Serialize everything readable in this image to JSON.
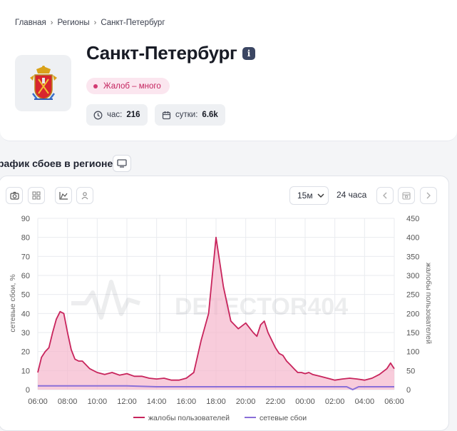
{
  "breadcrumb": {
    "home": "Главная",
    "regions": "Регионы",
    "current": "Санкт-Петербург"
  },
  "page": {
    "title": "Санкт-Петербург",
    "badge": "Жалоб – много"
  },
  "stats": {
    "hour_label": "час:",
    "hour_value": "216",
    "day_label": "сутки:",
    "day_value": "6.6k"
  },
  "section": {
    "title": "рафик сбоев в регионе"
  },
  "toolbar": {
    "interval": "15м",
    "period": "24 часа"
  },
  "watermark": "DETECTOR404",
  "colors": {
    "complaints": "#c8245c",
    "complaints_fill": "#f5b6cc",
    "outages": "#8a6fd8",
    "badge": "#c4245f"
  },
  "chart_data": {
    "type": "area",
    "xlabel": "",
    "ylabel_left": "сетевые сбои, %",
    "ylabel_right": "жалобы пользователей",
    "y_left_range": [
      0,
      90
    ],
    "y_right_range": [
      0,
      450
    ],
    "y_left_ticks": [
      "0",
      "10",
      "20",
      "30",
      "40",
      "50",
      "60",
      "70",
      "80",
      "90"
    ],
    "y_right_ticks": [
      "0",
      "50",
      "100",
      "150",
      "200",
      "250",
      "300",
      "350",
      "400",
      "450"
    ],
    "x_ticks": [
      "06:00",
      "08:00",
      "10:00",
      "12:00",
      "14:00",
      "16:00",
      "18:00",
      "20:00",
      "22:00",
      "00:00",
      "02:00",
      "04:00",
      "06:00"
    ],
    "grid": true,
    "legend_position": "bottom",
    "series": [
      {
        "name": "жалобы пользователей",
        "axis": "right",
        "x_hours": [
          0,
          0.25,
          0.5,
          0.75,
          1,
          1.25,
          1.5,
          1.75,
          2,
          2.25,
          2.5,
          2.75,
          3,
          3.5,
          4,
          4.5,
          5,
          5.5,
          6,
          6.5,
          7,
          7.5,
          8,
          8.5,
          9,
          9.5,
          10,
          10.5,
          11,
          11.5,
          12,
          12.5,
          13,
          13.5,
          14,
          14.5,
          14.75,
          15,
          15.25,
          15.5,
          15.75,
          16,
          16.25,
          16.5,
          16.75,
          17,
          17.25,
          17.5,
          17.75,
          18,
          18.25,
          18.5,
          19,
          19.5,
          20,
          20.5,
          21,
          21.5,
          22,
          22.5,
          23,
          23.5,
          23.75,
          24
        ],
        "values": [
          45,
          85,
          100,
          110,
          150,
          185,
          205,
          200,
          150,
          105,
          80,
          75,
          75,
          55,
          45,
          40,
          45,
          38,
          42,
          35,
          35,
          30,
          28,
          30,
          25,
          25,
          30,
          45,
          130,
          200,
          400,
          270,
          180,
          160,
          175,
          150,
          140,
          170,
          180,
          150,
          130,
          110,
          95,
          90,
          75,
          65,
          55,
          45,
          45,
          42,
          45,
          40,
          35,
          30,
          25,
          28,
          30,
          28,
          25,
          30,
          40,
          55,
          70,
          55
        ]
      },
      {
        "name": "сетевые сбои",
        "axis": "left",
        "x_hours": [
          0,
          2,
          4,
          6,
          8,
          10,
          12,
          14,
          16,
          18,
          20,
          20.8,
          21.2,
          21.6,
          22,
          24
        ],
        "values": [
          2,
          2,
          2,
          2,
          1.5,
          1.5,
          1.5,
          1.5,
          1.5,
          1.5,
          1.5,
          1.5,
          0,
          1.5,
          1.5,
          1.5
        ]
      }
    ]
  }
}
